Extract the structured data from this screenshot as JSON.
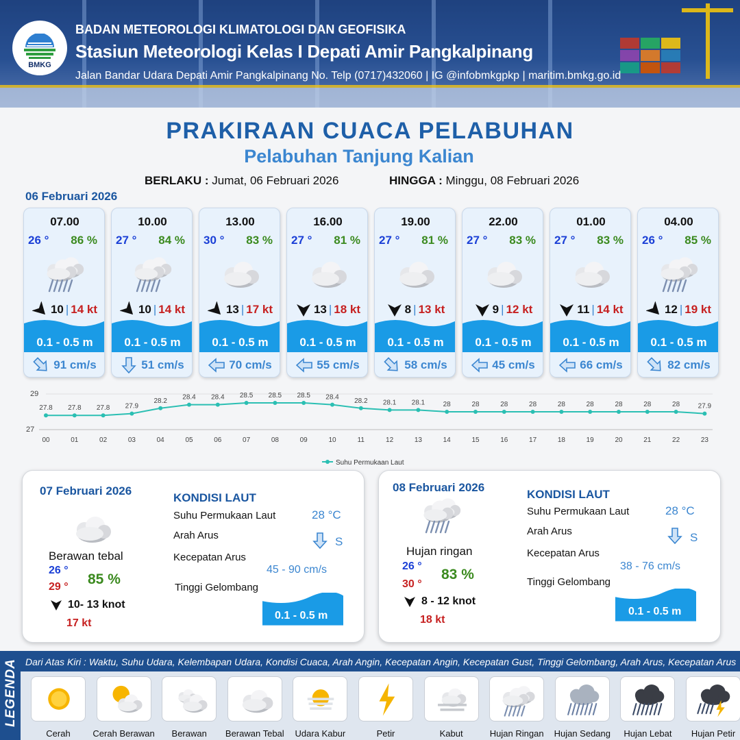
{
  "header": {
    "logo_text": "BMKG",
    "agency": "BADAN METEOROLOGI KLIMATOLOGI DAN GEOFISIKA",
    "station": "Stasiun Meteorologi Kelas I Depati Amir Pangkalpinang",
    "address": "Jalan Bandar Udara Depati Amir Pangkalpinang No. Telp (0717)432060 | IG @infobmkgpkp | maritim.bmkg.go.id"
  },
  "title": "PRAKIRAAN CUACA PELABUHAN",
  "subtitle": "Pelabuhan Tanjung Kalian",
  "validity": {
    "from_label": "BERLAKU :",
    "from_value": "Jumat, 06 Februari 2026",
    "to_label": "HINGGA :",
    "to_value": "Minggu, 08 Februari 2026"
  },
  "day0_date": "06 Februari 2026",
  "cards": [
    {
      "time": "07.00",
      "temp": "26 °",
      "hum": "86 %",
      "icon": "hujan-ringan",
      "wind_dir": "NE",
      "wind": "10",
      "sep": "|",
      "gust": "14 kt",
      "wave": "0.1 - 0.5 m",
      "cur_dir": "SE",
      "current": "91 cm/s"
    },
    {
      "time": "10.00",
      "temp": "27 °",
      "hum": "84 %",
      "icon": "hujan-ringan",
      "wind_dir": "NE",
      "wind": "10",
      "sep": "|",
      "gust": "14 kt",
      "wave": "0.1 - 0.5 m",
      "cur_dir": "S",
      "current": "51 cm/s"
    },
    {
      "time": "13.00",
      "temp": "30 °",
      "hum": "83 %",
      "icon": "berawan-tebal",
      "wind_dir": "NE",
      "wind": "13",
      "sep": "|",
      "gust": "17 kt",
      "wave": "0.1 - 0.5 m",
      "cur_dir": "W",
      "current": "70 cm/s"
    },
    {
      "time": "16.00",
      "temp": "27 °",
      "hum": "81 %",
      "icon": "berawan-tebal",
      "wind_dir": "N",
      "wind": "13",
      "sep": "|",
      "gust": "18 kt",
      "wave": "0.1 - 0.5 m",
      "cur_dir": "W",
      "current": "55 cm/s"
    },
    {
      "time": "19.00",
      "temp": "27 °",
      "hum": "81 %",
      "icon": "berawan-tebal",
      "wind_dir": "N",
      "wind": "8",
      "sep": "|",
      "gust": "13 kt",
      "wave": "0.1 - 0.5 m",
      "cur_dir": "SE",
      "current": "58 cm/s"
    },
    {
      "time": "22.00",
      "temp": "27 °",
      "hum": "83 %",
      "icon": "berawan-tebal",
      "wind_dir": "N",
      "wind": "9",
      "sep": "|",
      "gust": "12 kt",
      "wave": "0.1 - 0.5 m",
      "cur_dir": "W",
      "current": "45 cm/s"
    },
    {
      "time": "01.00",
      "temp": "27 °",
      "hum": "83 %",
      "icon": "berawan-tebal",
      "wind_dir": "N",
      "wind": "11",
      "sep": "|",
      "gust": "14 kt",
      "wave": "0.1 - 0.5 m",
      "cur_dir": "W",
      "current": "66 cm/s"
    },
    {
      "time": "04.00",
      "temp": "26 °",
      "hum": "85 %",
      "icon": "hujan-ringan",
      "wind_dir": "NE",
      "wind": "12",
      "sep": "|",
      "gust": "19 kt",
      "wave": "0.1 - 0.5 m",
      "cur_dir": "SE",
      "current": "82 cm/s"
    }
  ],
  "chart_data": {
    "type": "line",
    "x": [
      "00",
      "01",
      "02",
      "03",
      "04",
      "05",
      "06",
      "07",
      "08",
      "09",
      "10",
      "11",
      "12",
      "13",
      "14",
      "15",
      "16",
      "17",
      "18",
      "19",
      "20",
      "21",
      "22",
      "23"
    ],
    "series": [
      {
        "name": "Suhu Permukaan Laut",
        "values": [
          27.8,
          27.8,
          27.8,
          27.9,
          28.2,
          28.4,
          28.4,
          28.5,
          28.5,
          28.5,
          28.4,
          28.2,
          28.1,
          28.1,
          28.0,
          28.0,
          28.0,
          28.0,
          28.0,
          28.0,
          28.0,
          28.0,
          28.0,
          27.9
        ]
      }
    ],
    "y_ticks": [
      "29",
      "27"
    ],
    "ylim": [
      27,
      29
    ],
    "legend_position": "bottom",
    "color": "#2bbfb3"
  },
  "days": [
    {
      "date": "07 Februari 2026",
      "icon": "berawan-tebal",
      "condition": "Berawan tebal",
      "tmin": "26 °",
      "tmax": "29 °",
      "hum": "85 %",
      "wind_dir": "N",
      "wind": "10- 13 knot",
      "gust": "17 kt",
      "kondisi_title": "KONDISI LAUT",
      "sst_label": "Suhu Permukaan Laut",
      "sst": "28 °C",
      "arah_label": "Arah Arus",
      "arah": "S",
      "kecepatan_label": "Kecepatan Arus",
      "kecepatan": "45  - 90 cm/s",
      "tinggi_label": "Tinggi Gelombang",
      "tinggi": "0.1 - 0.5 m"
    },
    {
      "date": "08 Februari 2026",
      "icon": "hujan-ringan",
      "condition": "Hujan ringan",
      "tmin": "26 °",
      "tmax": "30 °",
      "hum": "83 %",
      "wind_dir": "N",
      "wind": "8  - 12 knot",
      "gust": "18 kt",
      "kondisi_title": "KONDISI LAUT",
      "sst_label": "Suhu Permukaan Laut",
      "sst": "28 °C",
      "arah_label": "Arah Arus",
      "arah": "S",
      "kecepatan_label": "Kecepatan Arus",
      "kecepatan": "38  - 76 cm/s",
      "tinggi_label": "Tinggi Gelombang",
      "tinggi": "0.1 - 0.5 m"
    }
  ],
  "legend": {
    "side_label": "LEGENDA",
    "description": "Dari Atas Kiri : Waktu, Suhu Udara, Kelembapan Udara, Kondisi Cuaca, Arah Angin, Kecepatan Angin, Kecepatan Gust, Tinggi Gelombang, Arah Arus, Kecepatan Arus",
    "items": [
      {
        "label": "Cerah",
        "icon": "cerah"
      },
      {
        "label": "Cerah Berawan",
        "icon": "cerah-berawan"
      },
      {
        "label": "Berawan",
        "icon": "berawan"
      },
      {
        "label": "Berawan Tebal",
        "icon": "berawan-tebal"
      },
      {
        "label": "Udara Kabur",
        "icon": "udara-kabur"
      },
      {
        "label": "Petir",
        "icon": "petir"
      },
      {
        "label": "Kabut",
        "icon": "kabut"
      },
      {
        "label": "Hujan Ringan",
        "icon": "hujan-ringan"
      },
      {
        "label": "Hujan Sedang",
        "icon": "hujan-sedang"
      },
      {
        "label": "Hujan Lebat",
        "icon": "hujan-lebat"
      },
      {
        "label": "Hujan Petir",
        "icon": "hujan-petir"
      }
    ]
  },
  "colors": {
    "title": "#1e5fa8",
    "temp": "#1a3fd6",
    "hum": "#3b8a1f",
    "gust": "#c62020",
    "wave": "#1a9be6",
    "current": "#3b86d0"
  }
}
